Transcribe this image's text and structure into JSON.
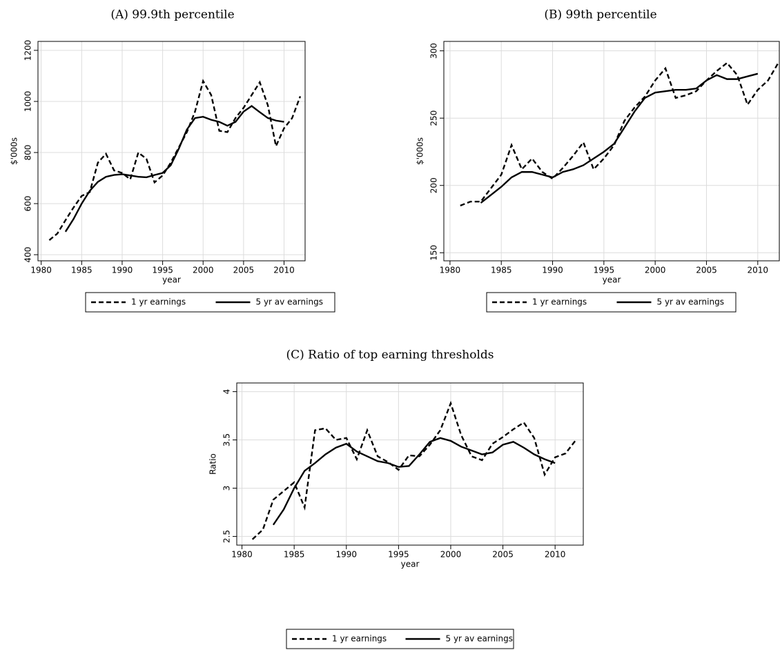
{
  "chart_data": [
    {
      "type": "line",
      "title": "(A) 99.9th percentile",
      "xlabel": "year",
      "ylabel": "$'000s",
      "x": [
        1981,
        1982,
        1983,
        1984,
        1985,
        1986,
        1987,
        1988,
        1989,
        1990,
        1991,
        1992,
        1993,
        1994,
        1995,
        1996,
        1997,
        1998,
        1999,
        2000,
        2001,
        2002,
        2003,
        2004,
        2005,
        2006,
        2007,
        2008,
        2009,
        2010,
        2011,
        2012
      ],
      "series": [
        {
          "name": "1 yr earnings",
          "color": "#000000",
          "style": "dashed",
          "values": [
            457,
            483,
            535,
            585,
            630,
            645,
            760,
            795,
            730,
            720,
            695,
            800,
            775,
            683,
            710,
            760,
            820,
            880,
            960,
            1080,
            1025,
            885,
            880,
            935,
            975,
            1025,
            1075,
            985,
            825,
            895,
            935,
            1020
          ]
        },
        {
          "name": "5 yr av earnings",
          "color": "#000000",
          "style": "solid",
          "values": [
            null,
            null,
            490,
            540,
            600,
            650,
            685,
            705,
            712,
            715,
            710,
            705,
            703,
            712,
            720,
            750,
            815,
            890,
            935,
            940,
            928,
            920,
            905,
            920,
            960,
            982,
            958,
            935,
            925,
            920,
            null,
            null
          ]
        }
      ],
      "xlim": [
        1979.6,
        2012.6
      ],
      "xticks": [
        1980,
        1985,
        1990,
        1995,
        2000,
        2005,
        2010
      ],
      "ylim": [
        376,
        1235
      ],
      "yticks": [
        400,
        600,
        800,
        1000,
        1200
      ],
      "grid": true
    },
    {
      "type": "line",
      "title": "(B) 99th percentile",
      "xlabel": "year",
      "ylabel": "$'000s",
      "x": [
        1981,
        1982,
        1983,
        1984,
        1985,
        1986,
        1987,
        1988,
        1989,
        1990,
        1991,
        1992,
        1993,
        1994,
        1995,
        1996,
        1997,
        1998,
        1999,
        2000,
        2001,
        2002,
        2003,
        2004,
        2005,
        2006,
        2007,
        2008,
        2009,
        2010,
        2011,
        2012
      ],
      "series": [
        {
          "name": "1 yr earnings",
          "color": "#000000",
          "style": "dashed",
          "values": [
            185,
            188,
            188,
            198,
            208,
            230,
            212,
            220,
            210,
            205,
            213,
            222,
            232,
            212,
            220,
            230,
            248,
            258,
            266,
            278,
            287,
            265,
            267,
            270,
            278,
            285,
            291,
            282,
            260,
            271,
            278,
            291
          ]
        },
        {
          "name": "5 yr av earnings",
          "color": "#000000",
          "style": "solid",
          "values": [
            null,
            null,
            187,
            193,
            199,
            206,
            210,
            210,
            208,
            206,
            210,
            212,
            215,
            220,
            225,
            231,
            243,
            255,
            265,
            269,
            270,
            271,
            271,
            272,
            278,
            282,
            279,
            279,
            281,
            283,
            null,
            null
          ]
        }
      ],
      "xlim": [
        1979.4,
        2012.1
      ],
      "xticks": [
        1980,
        1985,
        1990,
        1995,
        2000,
        2005,
        2010
      ],
      "ylim": [
        144,
        307
      ],
      "yticks": [
        150,
        200,
        250,
        300
      ],
      "grid": true
    },
    {
      "type": "line",
      "title": "(C) Ratio of top earning thresholds",
      "xlabel": "year",
      "ylabel": "Ratio",
      "x": [
        1981,
        1982,
        1983,
        1984,
        1985,
        1986,
        1987,
        1988,
        1989,
        1990,
        1991,
        1992,
        1993,
        1994,
        1995,
        1996,
        1997,
        1998,
        1999,
        2000,
        2001,
        2002,
        2003,
        2004,
        2005,
        2006,
        2007,
        2008,
        2009,
        2010,
        2011,
        2012
      ],
      "series": [
        {
          "name": "1 yr earnings",
          "color": "#000000",
          "style": "dashed",
          "values": [
            2.47,
            2.57,
            2.88,
            2.97,
            3.06,
            2.8,
            3.6,
            3.62,
            3.5,
            3.52,
            3.3,
            3.6,
            3.33,
            3.27,
            3.19,
            3.34,
            3.33,
            3.45,
            3.6,
            3.88,
            3.55,
            3.33,
            3.29,
            3.46,
            3.53,
            3.61,
            3.68,
            3.52,
            3.14,
            3.32,
            3.36,
            3.5
          ]
        },
        {
          "name": "5 yr av earnings",
          "color": "#000000",
          "style": "solid",
          "values": [
            null,
            null,
            2.62,
            2.78,
            3.0,
            3.18,
            3.26,
            3.35,
            3.42,
            3.46,
            3.38,
            3.33,
            3.28,
            3.26,
            3.22,
            3.23,
            3.35,
            3.48,
            3.52,
            3.49,
            3.43,
            3.39,
            3.35,
            3.37,
            3.45,
            3.48,
            3.42,
            3.35,
            3.3,
            3.26,
            null,
            null
          ]
        }
      ],
      "xlim": [
        1979.5,
        2012.7
      ],
      "xticks": [
        1980,
        1985,
        1990,
        1995,
        2000,
        2005,
        2010
      ],
      "ylim": [
        2.41,
        4.09
      ],
      "yticks": [
        2.5,
        3,
        3.5,
        4
      ],
      "grid": true
    }
  ]
}
